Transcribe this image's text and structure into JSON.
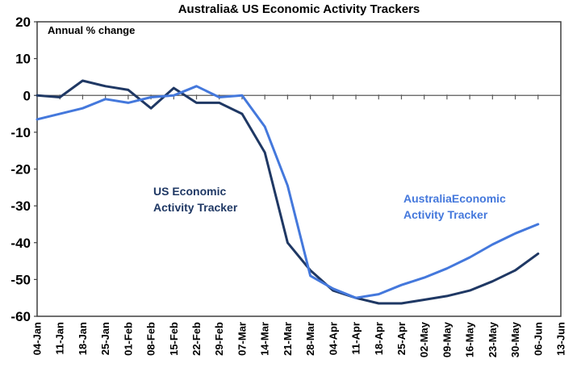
{
  "title": "Australia& US Economic Activity Trackers",
  "chart_data": {
    "type": "line",
    "title": "Australia& US Economic Activity Trackers",
    "inner_label": "Annual % change",
    "categories": [
      "04-Jan",
      "11-Jan",
      "18-Jan",
      "25-Jan",
      "01-Feb",
      "08-Feb",
      "15-Feb",
      "22-Feb",
      "29-Feb",
      "07-Mar",
      "14-Mar",
      "21-Mar",
      "28-Mar",
      "04-Apr",
      "11-Apr",
      "18-Apr",
      "25-Apr",
      "02-May",
      "09-May",
      "16-May",
      "23-May",
      "30-May",
      "06-Jun",
      "13-Jun"
    ],
    "series": [
      {
        "name": "US Economic Activity Tracker",
        "color": "#1F3864",
        "values": [
          0,
          -0.5,
          4,
          2.5,
          1.5,
          -3.5,
          2,
          -2,
          -2,
          -5,
          -15.5,
          -40,
          -47.5,
          -53,
          -55,
          -56.5,
          -56.5,
          -55.5,
          -54.5,
          -53,
          -50.5,
          -47.5,
          -43,
          null
        ]
      },
      {
        "name": "Australia Economic Activity Tracker",
        "color": "#4478DC",
        "values": [
          -6.5,
          -5,
          -3.5,
          -1,
          -2,
          -0.5,
          0,
          2.5,
          -0.5,
          0,
          -8.5,
          -24.5,
          -49,
          -52.5,
          -55,
          -54,
          -51.5,
          -49.5,
          -47,
          -44,
          -40.5,
          -37.5,
          -35,
          null
        ]
      }
    ],
    "ylim": [
      -60,
      20
    ],
    "yticks": [
      20,
      10,
      0,
      -10,
      -20,
      -30,
      -40,
      -50,
      -60
    ],
    "grid": false,
    "legend_position": "none",
    "x_label_rotation": -90,
    "category_axis_crosses_at": 0
  },
  "annotations": {
    "us": {
      "lines": [
        "US Economic",
        "Activity Tracker"
      ],
      "color": "#1F3864"
    },
    "australia": {
      "lines": [
        "AustraliaEconomic",
        "Activity Tracker"
      ],
      "color": "#4478DC"
    }
  },
  "colors": {
    "plot_border": "#3F3F3F",
    "zero_axis": "#595959",
    "background": "#FFFFFF",
    "text": "#000000"
  }
}
